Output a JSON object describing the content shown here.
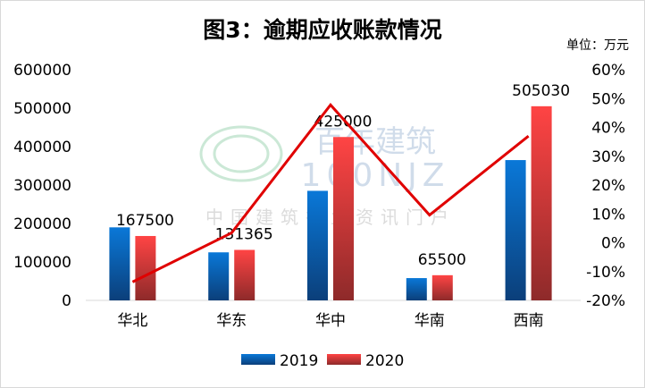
{
  "chart_data": {
    "type": "bar+line",
    "title": "图3：逾期应收账款情况",
    "unit_label": "单位：万元",
    "categories": [
      "华北",
      "华东",
      "华中",
      "华南",
      "西南"
    ],
    "series": [
      {
        "name": "2019",
        "type": "bar",
        "axis": "left",
        "color": "#0a6fc9",
        "values": [
          190000,
          125000,
          285000,
          58000,
          365000
        ]
      },
      {
        "name": "2020",
        "type": "bar",
        "axis": "left",
        "color": "#f04545",
        "values": [
          167500,
          131365,
          425000,
          65500,
          505030
        ],
        "data_labels": [
          "167500",
          "131365",
          "425000",
          "65500",
          "505030"
        ]
      },
      {
        "type": "line",
        "axis": "right",
        "color": "#e00000",
        "values": [
          -13.6,
          3.4,
          47.8,
          9.6,
          37
        ]
      }
    ],
    "left_axis": {
      "ylim": [
        0,
        600000
      ],
      "ticks": [
        "0",
        "100000",
        "200000",
        "300000",
        "400000",
        "500000",
        "600000"
      ]
    },
    "right_axis": {
      "ylim": [
        -20,
        60
      ],
      "ticks": [
        "-20%",
        "-10%",
        "0%",
        "10%",
        "20%",
        "30%",
        "40%",
        "50%",
        "60%"
      ]
    },
    "legend": {
      "placement": "bottom",
      "entries": [
        "2019",
        "2020"
      ]
    },
    "grid": false,
    "watermark": "百年建筑 100NJZ 中国建筑行业资讯门户"
  }
}
